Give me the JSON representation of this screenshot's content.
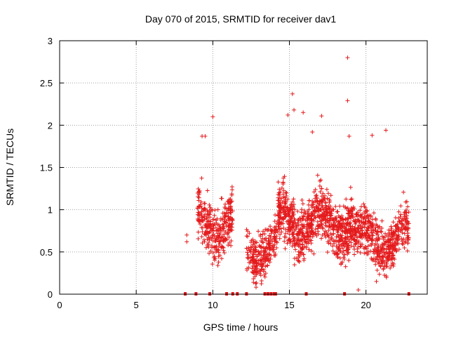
{
  "chart_data": {
    "type": "scatter",
    "title": "Day 070 of 2015, SRMTID for receiver dav1",
    "xlabel": "GPS time / hours",
    "ylabel": "SRMTID / TECUs",
    "xlim": [
      0,
      24
    ],
    "ylim": [
      0,
      3
    ],
    "xticks": [
      0,
      5,
      10,
      15,
      20
    ],
    "yticks": [
      0,
      0.5,
      1,
      1.5,
      2,
      2.5,
      3
    ],
    "grid": true,
    "marker": "+",
    "color": "#e41a1c",
    "clusters": [
      {
        "x_start": 9.0,
        "x_end": 11.3,
        "n": 320,
        "y_center": 0.85,
        "y_spread": 0.38
      },
      {
        "x_start": 12.2,
        "x_end": 14.2,
        "n": 260,
        "y_center": 0.55,
        "y_spread": 0.3
      },
      {
        "x_start": 14.2,
        "x_end": 19.2,
        "n": 850,
        "y_center": 0.85,
        "y_spread": 0.38
      },
      {
        "x_start": 19.2,
        "x_end": 22.8,
        "n": 520,
        "y_center": 0.65,
        "y_spread": 0.33
      }
    ],
    "outliers": [
      {
        "x": 8.3,
        "y": 0.7
      },
      {
        "x": 8.3,
        "y": 0.62
      },
      {
        "x": 10.0,
        "y": 2.1
      },
      {
        "x": 9.3,
        "y": 1.87
      },
      {
        "x": 9.5,
        "y": 1.87
      },
      {
        "x": 15.2,
        "y": 2.37
      },
      {
        "x": 15.3,
        "y": 2.18
      },
      {
        "x": 14.9,
        "y": 2.12
      },
      {
        "x": 15.9,
        "y": 2.15
      },
      {
        "x": 17.1,
        "y": 2.11
      },
      {
        "x": 16.5,
        "y": 1.92
      },
      {
        "x": 18.8,
        "y": 2.8
      },
      {
        "x": 18.8,
        "y": 2.29
      },
      {
        "x": 21.3,
        "y": 1.94
      },
      {
        "x": 20.4,
        "y": 1.88
      },
      {
        "x": 18.9,
        "y": 1.87
      },
      {
        "x": 19.5,
        "y": 0.05
      }
    ],
    "zero_markers": [
      8.2,
      8.9,
      9.8,
      10.9,
      11.3,
      11.6,
      12.2,
      13.4,
      13.6,
      13.8,
      14.0,
      14.1,
      16.1,
      18.6,
      22.8
    ]
  }
}
